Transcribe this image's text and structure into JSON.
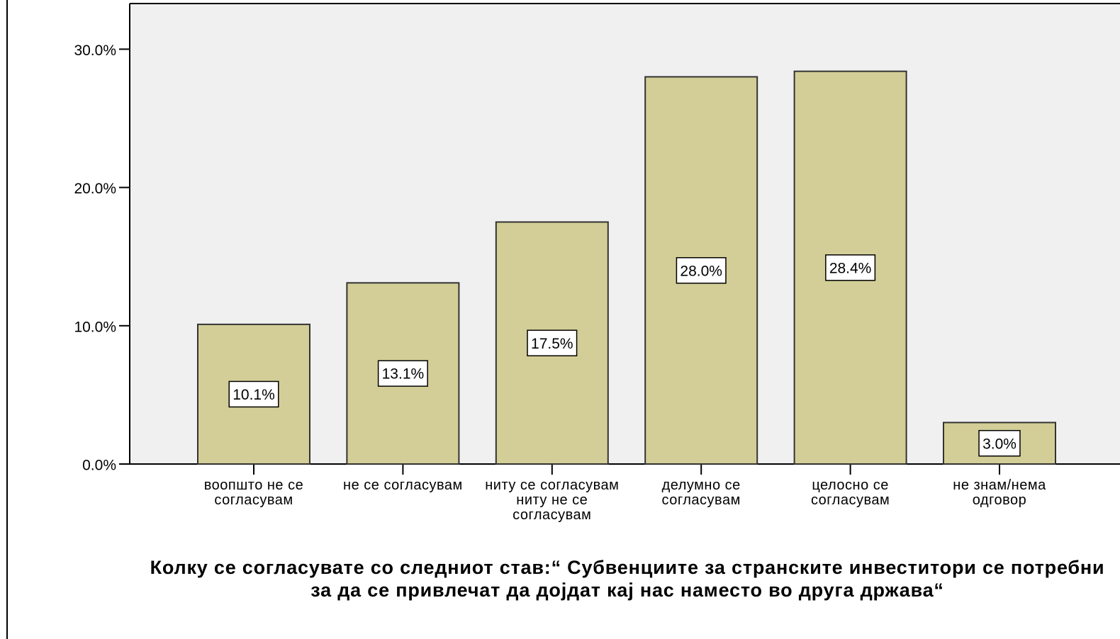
{
  "chart_data": {
    "type": "bar",
    "x_label": "Колку се согласувате со следниот став:“ Субвенциите за странските инвеститори се потребни за да се привлечат да дојдат кај нас наместо во друга држава“",
    "categories": [
      "воопшто не се согласувам",
      "не се согласувам",
      "ниту се согласувам ниту не се согласувам",
      "делумно се согласувам",
      "целосно се согласувам",
      "не знам/нема одговор"
    ],
    "values": [
      10.1,
      13.1,
      17.5,
      28.0,
      28.4,
      3.0
    ],
    "value_labels": [
      "10.1%",
      "13.1%",
      "17.5%",
      "28.0%",
      "28.4%",
      "3.0%"
    ],
    "color": "#d3ce97",
    "ylim": [
      0,
      33.3
    ],
    "yticks": [
      {
        "value": 0,
        "label": "0.0%"
      },
      {
        "value": 10,
        "label": "10.0%"
      },
      {
        "value": 20,
        "label": "20.0%"
      },
      {
        "value": 30,
        "label": "30.0%"
      }
    ]
  }
}
